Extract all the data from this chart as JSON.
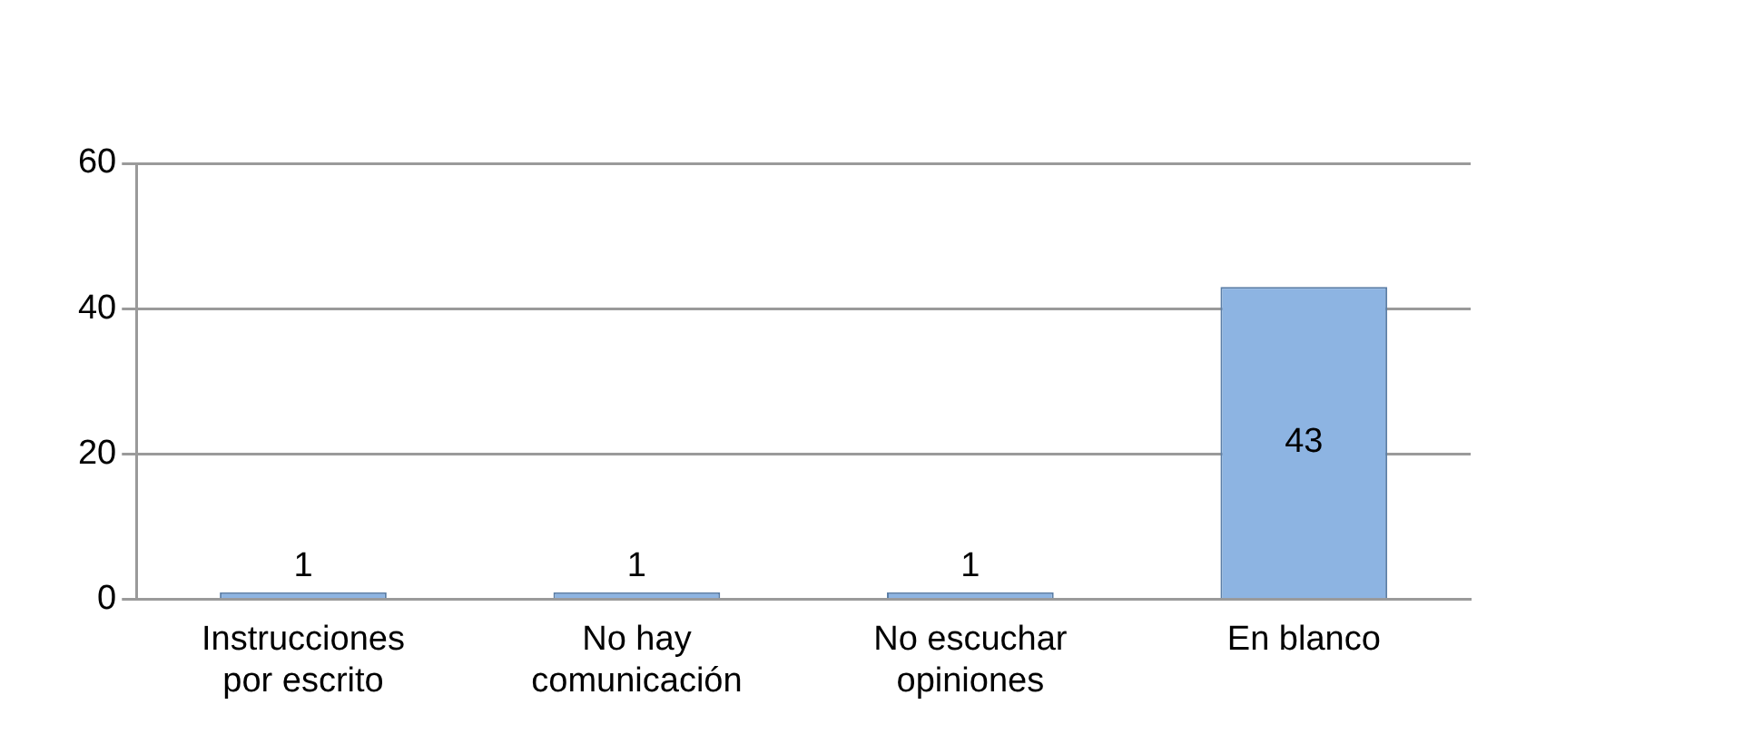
{
  "chart_data": {
    "type": "bar",
    "categories": [
      "Instrucciones por escrito",
      "No hay comunicación",
      "No escuchar opiniones",
      "En blanco"
    ],
    "values": [
      1,
      1,
      1,
      43
    ],
    "color": "#8db4e2",
    "ylim": [
      0,
      60
    ],
    "yticks": [
      0,
      20,
      40,
      60
    ],
    "grid": "y",
    "data_labels": true,
    "legend": false
  }
}
